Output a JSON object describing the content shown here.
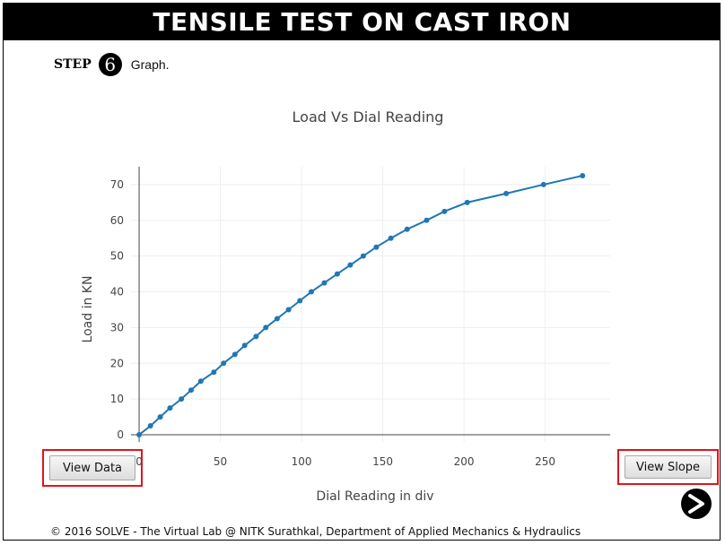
{
  "header": {
    "title": "TENSILE TEST ON CAST IRON"
  },
  "step": {
    "word": "STEP",
    "number": "6",
    "text": "Graph."
  },
  "chart_data": {
    "type": "line",
    "title": "Load Vs Dial Reading",
    "xlabel": "Dial Reading in div",
    "ylabel": "Load in KN",
    "xlim": [
      -5,
      290
    ],
    "ylim": [
      -2,
      75
    ],
    "xticks": [
      0,
      50,
      100,
      150,
      200,
      250
    ],
    "yticks": [
      0,
      10,
      20,
      30,
      40,
      50,
      60,
      70
    ],
    "grid": true,
    "color": "#1f77b4",
    "series": [
      {
        "x": [
          0,
          7,
          13,
          19,
          26,
          32,
          38,
          46,
          52,
          59,
          65,
          72,
          78,
          85,
          92,
          99,
          106,
          114,
          122,
          130,
          138,
          146,
          155,
          165,
          177,
          188,
          202,
          226,
          249,
          273
        ],
        "y": [
          0,
          2.5,
          5,
          7.5,
          10,
          12.5,
          15,
          17.5,
          20,
          22.5,
          25,
          27.5,
          30,
          32.5,
          35,
          37.5,
          40,
          42.5,
          45,
          47.5,
          50,
          52.5,
          55,
          57.5,
          60,
          62.5,
          65,
          67.5,
          70,
          72.5
        ]
      }
    ]
  },
  "buttons": {
    "view_data": "View Data",
    "view_slope": "View Slope"
  },
  "footer": {
    "text": "© 2016 SOLVE - The Virtual Lab @ NITK Surathkal, Department of Applied Mechanics & Hydraulics"
  }
}
